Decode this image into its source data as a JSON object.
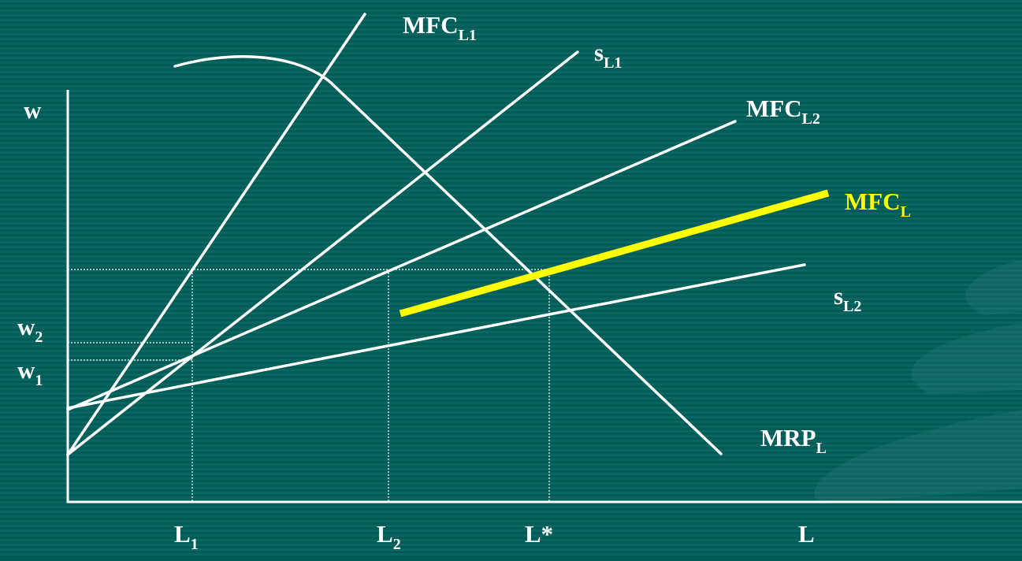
{
  "colors": {
    "background": "#005a56",
    "stripe": "#0b6560",
    "curves": "#ffffff",
    "highlight": "#ffff00"
  },
  "labels": {
    "y_axis": "w",
    "x_axis": "L",
    "w2": {
      "main": "w",
      "sub": "2"
    },
    "w1": {
      "main": "w",
      "sub": "1"
    },
    "L1": {
      "main": "L",
      "sub": "1"
    },
    "L2": {
      "main": "L",
      "sub": "2"
    },
    "Lstar": "L*",
    "mfc_l1": {
      "main": "MFC",
      "sub": "L1"
    },
    "s_l1": {
      "main": "s",
      "sub": "L1"
    },
    "mfc_l2": {
      "main": "MFC",
      "sub": "L2"
    },
    "mfc_l": {
      "main": "MFC",
      "sub": "L"
    },
    "s_l2": {
      "main": "s",
      "sub": "L2"
    },
    "mrp_l": {
      "main": "MRP",
      "sub": "L"
    }
  }
}
